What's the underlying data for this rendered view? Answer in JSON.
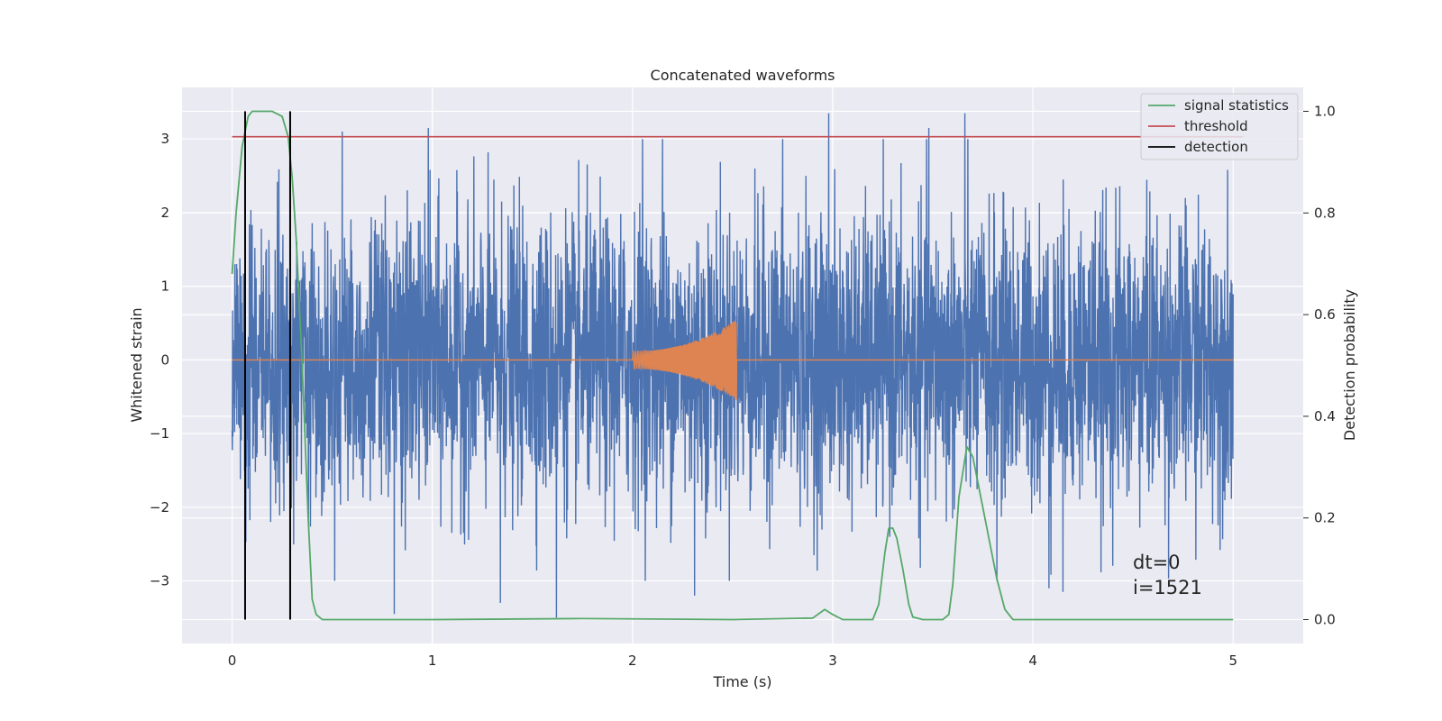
{
  "chart_data": {
    "type": "line",
    "title": "Concatenated waveforms",
    "xlabel": "Time (s)",
    "ylabel": "Whitened strain",
    "y2label": "Detection probability",
    "xlim": [
      -0.25,
      5.35
    ],
    "ylim": [
      -3.85,
      3.7
    ],
    "y2lim": [
      -0.047,
      1.047
    ],
    "xticks": [
      0,
      1,
      2,
      3,
      4,
      5
    ],
    "yticks": [
      -3,
      -2,
      -1,
      0,
      1,
      2,
      3
    ],
    "y2ticks": [
      0.0,
      0.2,
      0.4,
      0.6,
      0.8,
      1.0
    ],
    "grid": true,
    "legend_position": "top-right",
    "colors": {
      "strain": "#4c72b0",
      "injection": "#dd8452",
      "statistic": "#55a868",
      "threshold": "#c44e52",
      "detection": "#000000",
      "background": "#eaeaf2",
      "grid": "#ffffff"
    },
    "series": [
      {
        "name": "",
        "role": "whitened strain noise",
        "axis": "left",
        "x_range": [
          0,
          5
        ],
        "amplitude_std": 0.95,
        "peaks": [
          {
            "x": 0.55,
            "y": 3.1
          },
          {
            "x": 0.98,
            "y": 3.15
          },
          {
            "x": 2.05,
            "y": 3.0
          },
          {
            "x": 2.15,
            "y": 3.0
          },
          {
            "x": 2.75,
            "y": 3.0
          },
          {
            "x": 2.98,
            "y": 3.35
          },
          {
            "x": 3.48,
            "y": 3.15
          },
          {
            "x": 3.66,
            "y": 3.35
          },
          {
            "x": 0.81,
            "y": -3.45
          },
          {
            "x": 1.62,
            "y": -3.5
          },
          {
            "x": 2.31,
            "y": -3.2
          },
          {
            "x": 4.15,
            "y": -3.15
          },
          {
            "x": 1.34,
            "y": -3.3
          },
          {
            "x": 3.82,
            "y": -3.0
          },
          {
            "x": 4.08,
            "y": -3.1
          }
        ]
      },
      {
        "name": "",
        "role": "injected chirp",
        "axis": "left",
        "x_range": [
          2.0,
          2.52
        ],
        "amplitude_start": 0.12,
        "amplitude_end": 0.55
      },
      {
        "name": "signal statistics",
        "axis": "right",
        "x": [
          0,
          0.02,
          0.05,
          0.08,
          0.1,
          0.15,
          0.2,
          0.25,
          0.28,
          0.3,
          0.32,
          0.35,
          0.38,
          0.4,
          0.42,
          0.45,
          1.0,
          1.75,
          2.5,
          2.9,
          2.96,
          3.0,
          3.05,
          3.2,
          3.23,
          3.26,
          3.28,
          3.3,
          3.32,
          3.35,
          3.38,
          3.4,
          3.45,
          3.55,
          3.58,
          3.6,
          3.63,
          3.67,
          3.7,
          3.73,
          3.78,
          3.82,
          3.86,
          3.9,
          4.5,
          5.0
        ],
        "y": [
          0.68,
          0.8,
          0.93,
          0.99,
          1.0,
          1.0,
          1.0,
          0.99,
          0.95,
          0.87,
          0.75,
          0.5,
          0.2,
          0.04,
          0.01,
          0.0,
          0.0,
          0.002,
          0.0,
          0.003,
          0.02,
          0.01,
          0.0,
          0.0,
          0.03,
          0.13,
          0.18,
          0.18,
          0.16,
          0.1,
          0.03,
          0.005,
          0.0,
          0.0,
          0.01,
          0.07,
          0.24,
          0.34,
          0.32,
          0.26,
          0.16,
          0.08,
          0.02,
          0.0,
          0.0,
          0.0
        ]
      },
      {
        "name": "threshold",
        "axis": "right",
        "x": [
          0,
          5.05
        ],
        "y": [
          0.95,
          0.95
        ]
      },
      {
        "name": "detection",
        "axis": "right",
        "x_values": [
          0.065,
          0.29
        ],
        "y_range": [
          0.0,
          1.0
        ]
      }
    ],
    "annotations": [
      "dt=0",
      "i=1521"
    ]
  }
}
